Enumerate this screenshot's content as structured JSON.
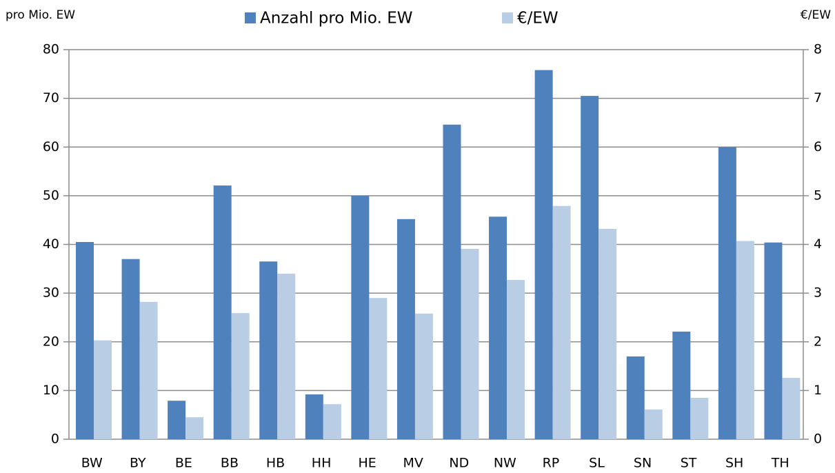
{
  "chart_data": {
    "type": "bar",
    "y_label": "pro Mio. EW",
    "y2_label": "€/EW",
    "categories": [
      "BW",
      "BY",
      "BE",
      "BB",
      "HB",
      "HH",
      "HE",
      "MV",
      "ND",
      "NW",
      "RP",
      "SL",
      "SN",
      "ST",
      "SH",
      "TH"
    ],
    "series": [
      {
        "name": "Anzahl pro Mio. EW",
        "color": "#4f81bd",
        "values": [
          40.5,
          37.0,
          7.9,
          52.1,
          36.5,
          9.2,
          50.0,
          45.2,
          64.6,
          45.7,
          75.8,
          70.5,
          17.0,
          22.1,
          60.0,
          40.4
        ]
      },
      {
        "name": "€/EW",
        "color": "#b9cde5",
        "axis": "y2",
        "values": [
          2.03,
          2.82,
          0.45,
          2.59,
          3.4,
          0.72,
          2.9,
          2.58,
          3.91,
          3.27,
          4.79,
          4.32,
          0.61,
          0.85,
          4.07,
          1.26
        ]
      }
    ],
    "ylim": [
      0,
      80
    ],
    "yticks": [
      0,
      10,
      20,
      30,
      40,
      50,
      60,
      70,
      80
    ],
    "y2lim": [
      0,
      8
    ],
    "y2ticks": [
      0,
      1,
      2,
      3,
      4,
      5,
      6,
      7,
      8
    ],
    "grid": true,
    "legend": "top"
  }
}
